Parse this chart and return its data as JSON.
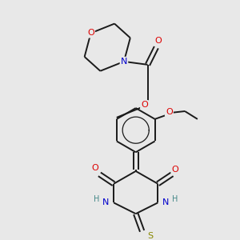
{
  "bg_color": "#e8e8e8",
  "bond_color": "#1a1a1a",
  "o_color": "#dd0000",
  "n_color": "#0000cc",
  "s_color": "#888800",
  "h_color": "#448888",
  "line_width": 1.4,
  "dpi": 100,
  "fig_w": 3.0,
  "fig_h": 3.0,
  "xlim": [
    0,
    300
  ],
  "ylim": [
    0,
    300
  ]
}
